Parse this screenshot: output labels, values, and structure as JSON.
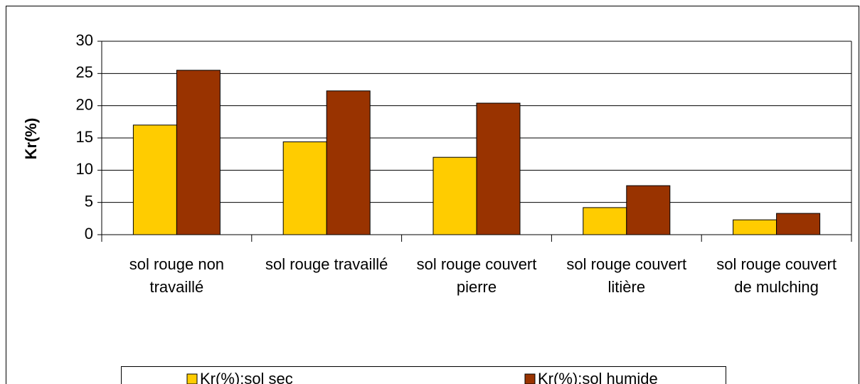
{
  "chart_data": {
    "type": "bar",
    "ylabel": "Kr(%)",
    "categories": [
      "sol rouge non travaillé",
      "sol rouge travaillé",
      "sol rouge couvert pierre",
      "sol rouge couvert litière",
      "sol rouge couvert de mulching"
    ],
    "series": [
      {
        "name": "Kr(%):sol sec",
        "color": "#ffcc00",
        "values": [
          17,
          14.4,
          12,
          4.2,
          2.3
        ]
      },
      {
        "name": "Kr(%):sol humide",
        "color": "#993300",
        "values": [
          25.5,
          22.3,
          20.4,
          7.6,
          3.3
        ]
      }
    ],
    "ylim": [
      0,
      30
    ],
    "yticks": [
      0,
      5,
      10,
      15,
      20,
      25,
      30
    ],
    "grid": true,
    "legend": "bottom"
  }
}
